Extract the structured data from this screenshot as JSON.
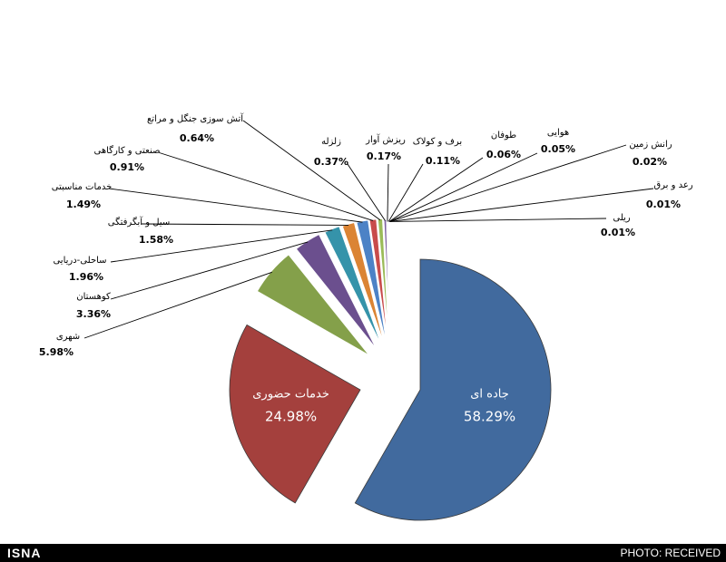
{
  "chart_data": {
    "type": "pie",
    "title": "",
    "start_angle": "12 o'clock, clockwise",
    "slices": [
      {
        "label": "جاده ای",
        "value": 58.29,
        "display": "58.29%",
        "color": "#416A9E",
        "exploded": true,
        "label_inside": true
      },
      {
        "label": "خدمات حضوری",
        "value": 24.98,
        "display": "24.98%",
        "color": "#A4403D",
        "exploded": true,
        "label_inside": true
      },
      {
        "label": "شهری",
        "value": 5.98,
        "display": "5.98%",
        "color": "#84A04A"
      },
      {
        "label": "کوهستان",
        "value": 3.36,
        "display": "3.36%",
        "color": "#6B4F8E"
      },
      {
        "label": "ساحلی-دریایی",
        "value": 1.96,
        "display": "1.96%",
        "color": "#3593AA"
      },
      {
        "label": "سیل و آبگرفتگی",
        "value": 1.58,
        "display": "1.58%",
        "color": "#DB8434"
      },
      {
        "label": "خدمات مناسبتی",
        "value": 1.49,
        "display": "1.49%",
        "color": "#4C82C6"
      },
      {
        "label": "صنعتی و کارگاهی",
        "value": 0.91,
        "display": "0.91%",
        "color": "#C84B4B"
      },
      {
        "label": "آتش سوزی جنگل و مراتع",
        "value": 0.64,
        "display": "0.64%",
        "color": "#9BBB59"
      },
      {
        "label": "زلزله",
        "value": 0.37,
        "display": "0.37%",
        "color": "#7E62A0"
      },
      {
        "label": "ریزش آوار",
        "value": 0.17,
        "display": "0.17%",
        "color": "#4BACC6"
      },
      {
        "label": "برف و کولاک",
        "value": 0.11,
        "display": "0.11%",
        "color": "#F79646"
      },
      {
        "label": "طوفان",
        "value": 0.06,
        "display": "0.06%",
        "color": "#2C4D75"
      },
      {
        "label": "هوایی",
        "value": 0.05,
        "display": "0.05%",
        "color": "#772C2A"
      },
      {
        "label": "رانش زمین",
        "value": 0.02,
        "display": "0.02%",
        "color": "#5F7530"
      },
      {
        "label": "رعد و برق",
        "value": 0.01,
        "display": "0.01%",
        "color": "#4D3B62"
      },
      {
        "label": "ریلی",
        "value": 0.01,
        "display": "0.01%",
        "color": "#276A7C"
      }
    ]
  },
  "footer": {
    "brand": "ISNA",
    "credit": "PHOTO: RECEIVED"
  }
}
